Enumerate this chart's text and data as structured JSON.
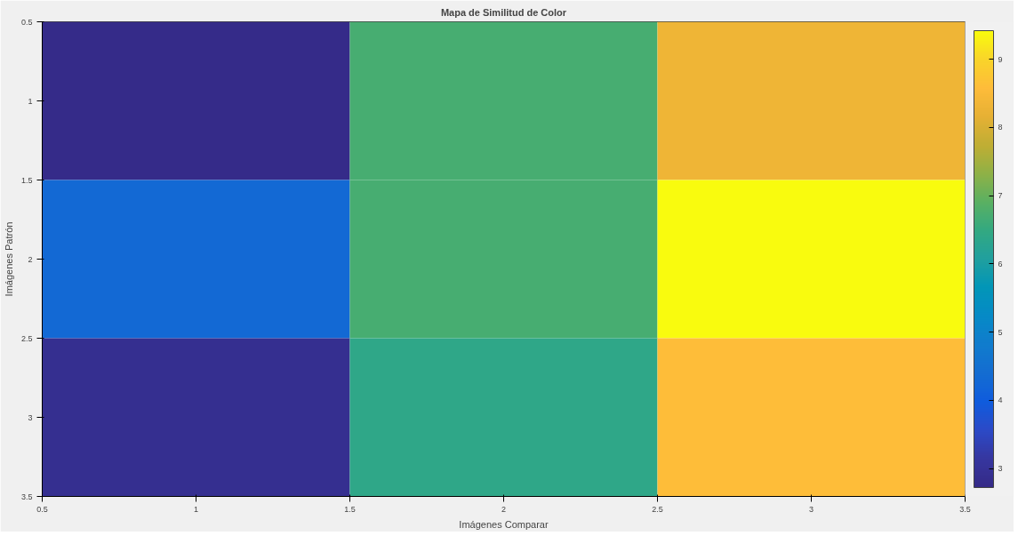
{
  "chart_data": {
    "type": "heatmap",
    "title": "Mapa de Similitud de Color",
    "xlabel": "Imágenes Comparar",
    "ylabel": "Imágenes Patrón",
    "x": [
      1,
      2,
      3
    ],
    "y": [
      1,
      2,
      3
    ],
    "cells": [
      [
        2.75,
        6.7,
        8.3
      ],
      [
        4.3,
        6.7,
        9.4
      ],
      [
        2.9,
        6.4,
        8.6
      ]
    ],
    "xlim": [
      0.5,
      3.5
    ],
    "xticks": [
      0.5,
      1,
      1.5,
      2,
      2.5,
      3,
      3.5
    ],
    "ylim": [
      3.5,
      0.5
    ],
    "yticks": [
      0.5,
      1,
      1.5,
      2,
      2.5,
      3,
      3.5
    ],
    "clim": [
      2.72,
      9.42
    ],
    "cticks": [
      3,
      4,
      5,
      6,
      7,
      8,
      9
    ],
    "grid": false
  }
}
